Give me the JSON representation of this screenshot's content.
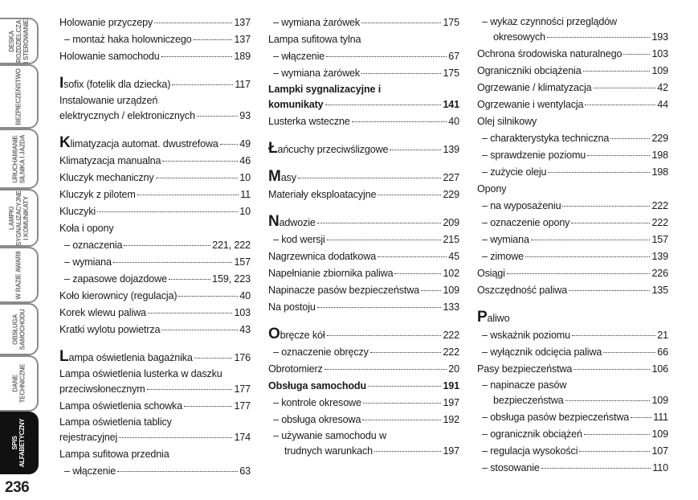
{
  "side_tabs": [
    {
      "label": "DESKA\nROZDZIELCZA\nI STEROWANIE",
      "active": false
    },
    {
      "label": "BEZPIECZEŃSTWO",
      "active": false
    },
    {
      "label": "URUCHAMIANIE\nSILNIKA I JAZDA",
      "active": false
    },
    {
      "label": "LAMPKI\nSYGNALIZACYJNE\nI KOMUNIKATY",
      "active": false
    },
    {
      "label": "W RAZIE AWARII",
      "active": false
    },
    {
      "label": "OBSŁUGA\nSAMOCHODU",
      "active": false
    },
    {
      "label": "DANE\nTECHNICZNE",
      "active": false
    },
    {
      "label": "SPIS\nALFABETYCZNY",
      "active": true
    }
  ],
  "page_number": "236",
  "columns": [
    [
      {
        "lines": [
          "Holowanie przyczepy"
        ],
        "page": "137"
      },
      {
        "lines": [
          "– montaż haka holowniczego"
        ],
        "page": "137",
        "sub": true
      },
      {
        "lines": [
          "Holowanie samochodu"
        ],
        "page": "189"
      },
      {
        "initial": "I",
        "lines": [
          "sofix (fotelik dla dziecka)"
        ],
        "page": "117",
        "new_letter": true
      },
      {
        "lines": [
          "Instalowanie urządzeń",
          "elektrycznych / elektronicznych"
        ],
        "page": "93"
      },
      {
        "initial": "K",
        "lines": [
          "limatyzacja automat. dwustrefowa"
        ],
        "page": "49",
        "new_letter": true
      },
      {
        "lines": [
          "Klimatyzacja manualna"
        ],
        "page": "46"
      },
      {
        "lines": [
          "Kluczyk mechaniczny"
        ],
        "page": "10"
      },
      {
        "lines": [
          "Kluczyk z pilotem"
        ],
        "page": "11"
      },
      {
        "lines": [
          "Kluczyki"
        ],
        "page": "10"
      },
      {
        "lines": [
          "Koła i opony"
        ]
      },
      {
        "lines": [
          "– oznaczenia"
        ],
        "page": "221, 222",
        "sub": true
      },
      {
        "lines": [
          "– wymiana"
        ],
        "page": "157",
        "sub": true
      },
      {
        "lines": [
          "– zapasowe dojazdowe"
        ],
        "page": "159, 223",
        "sub": true
      },
      {
        "lines": [
          "Koło kierownicy (regulacja)"
        ],
        "page": "40"
      },
      {
        "lines": [
          "Korek wlewu paliwa"
        ],
        "page": "103"
      },
      {
        "lines": [
          "Kratki wylotu powietrza"
        ],
        "page": "43"
      },
      {
        "initial": "L",
        "lines": [
          "ampa oświetlenia bagażnika"
        ],
        "page": "176",
        "new_letter": true
      },
      {
        "lines": [
          "Lampa oświetlenia lusterka w daszku",
          "przeciwsłonecznym"
        ],
        "page": "177"
      },
      {
        "lines": [
          "Lampa oświetlenia schowka"
        ],
        "page": "177"
      },
      {
        "lines": [
          "Lampa oświetlenia tablicy",
          "rejestracyjnej"
        ],
        "page": "174"
      },
      {
        "lines": [
          "Lampa sufitowa przednia"
        ]
      },
      {
        "lines": [
          "– włączenie"
        ],
        "page": "63",
        "sub": true
      }
    ],
    [
      {
        "lines": [
          "– wymiana żarówek"
        ],
        "page": "175",
        "sub": true
      },
      {
        "lines": [
          "Lampa sufitowa tylna"
        ]
      },
      {
        "lines": [
          "– włączenie"
        ],
        "page": "67",
        "sub": true
      },
      {
        "lines": [
          "– wymiana żarówek"
        ],
        "page": "175",
        "sub": true
      },
      {
        "lines": [
          "Lampki sygnalizacyjne i",
          "komunikaty"
        ],
        "page": "141",
        "bold": true
      },
      {
        "lines": [
          "Lusterka wsteczne"
        ],
        "page": "40"
      },
      {
        "initial": "Ł",
        "lines": [
          "ańcuchy przeciwślizgowe"
        ],
        "page": "139",
        "new_letter": true
      },
      {
        "initial": "M",
        "lines": [
          "asy"
        ],
        "page": "227",
        "new_letter": true
      },
      {
        "lines": [
          "Materiały eksploatacyjne"
        ],
        "page": "229"
      },
      {
        "initial": "N",
        "lines": [
          "adwozie"
        ],
        "page": "209",
        "new_letter": true
      },
      {
        "lines": [
          "– kod wersji"
        ],
        "page": "215",
        "sub": true
      },
      {
        "lines": [
          "Nagrzewnica dodatkowa"
        ],
        "page": "45"
      },
      {
        "lines": [
          "Napełnianie zbiornika paliwa"
        ],
        "page": "102"
      },
      {
        "lines": [
          "Napinacze pasów bezpieczeństwa"
        ],
        "page": "109"
      },
      {
        "lines": [
          "Na postoju"
        ],
        "page": "133"
      },
      {
        "initial": "O",
        "lines": [
          "bręcze kół"
        ],
        "page": "222",
        "new_letter": true
      },
      {
        "lines": [
          "– oznaczenie obręczy"
        ],
        "page": "222",
        "sub": true
      },
      {
        "lines": [
          "Obrotomierz"
        ],
        "page": "20"
      },
      {
        "lines": [
          "Obsługa samochodu"
        ],
        "page": "191",
        "bold": true
      },
      {
        "lines": [
          "– kontrole okresowe"
        ],
        "page": "197",
        "sub": true
      },
      {
        "lines": [
          "– obsługa okresowa"
        ],
        "page": "192",
        "sub": true
      },
      {
        "lines": [
          "– używanie samochodu w",
          "trudnych warunkach"
        ],
        "page": "197",
        "sub": true
      }
    ],
    [
      {
        "lines": [
          "– wykaz czynności przeglądów",
          "okresowych"
        ],
        "page": "193",
        "sub": true
      },
      {
        "lines": [
          "Ochrona środowiska naturalnego"
        ],
        "page": "103"
      },
      {
        "lines": [
          "Ograniczniki obciążenia"
        ],
        "page": "109"
      },
      {
        "lines": [
          "Ogrzewanie / klimatyzacja"
        ],
        "page": "42"
      },
      {
        "lines": [
          "Ogrzewanie i wentylacja"
        ],
        "page": "44"
      },
      {
        "lines": [
          "Olej silnikowy"
        ]
      },
      {
        "lines": [
          "– charakterystyka techniczna"
        ],
        "page": "229",
        "sub": true
      },
      {
        "lines": [
          "– sprawdzenie poziomu"
        ],
        "page": "198",
        "sub": true
      },
      {
        "lines": [
          "– zużycie oleju"
        ],
        "page": "198",
        "sub": true
      },
      {
        "lines": [
          "Opony"
        ]
      },
      {
        "lines": [
          "– na wyposażeniu"
        ],
        "page": "222",
        "sub": true
      },
      {
        "lines": [
          "– oznaczenie opony"
        ],
        "page": "222",
        "sub": true
      },
      {
        "lines": [
          "– wymiana"
        ],
        "page": "157",
        "sub": true
      },
      {
        "lines": [
          "– zimowe"
        ],
        "page": "139",
        "sub": true
      },
      {
        "lines": [
          "Osiągi"
        ],
        "page": "226"
      },
      {
        "lines": [
          "Oszczędność paliwa"
        ],
        "page": "135"
      },
      {
        "initial": "P",
        "lines": [
          "aliwo"
        ],
        "new_letter": true
      },
      {
        "lines": [
          "– wskaźnik poziomu"
        ],
        "page": "21",
        "sub": true
      },
      {
        "lines": [
          "– wyłącznik odcięcia paliwa"
        ],
        "page": "66",
        "sub": true
      },
      {
        "lines": [
          "Pasy bezpieczeństwa"
        ],
        "page": "106"
      },
      {
        "lines": [
          "– napinacze pasów",
          "bezpieczeństwa"
        ],
        "page": "109",
        "sub": true
      },
      {
        "lines": [
          "– obsługa pasów bezpieczeństwa"
        ],
        "page": "111",
        "sub": true
      },
      {
        "lines": [
          "– ogranicznik obciążeń"
        ],
        "page": "109",
        "sub": true
      },
      {
        "lines": [
          "– regulacja wysokości"
        ],
        "page": "107",
        "sub": true
      },
      {
        "lines": [
          "– stosowanie"
        ],
        "page": "110",
        "sub": true
      }
    ]
  ]
}
